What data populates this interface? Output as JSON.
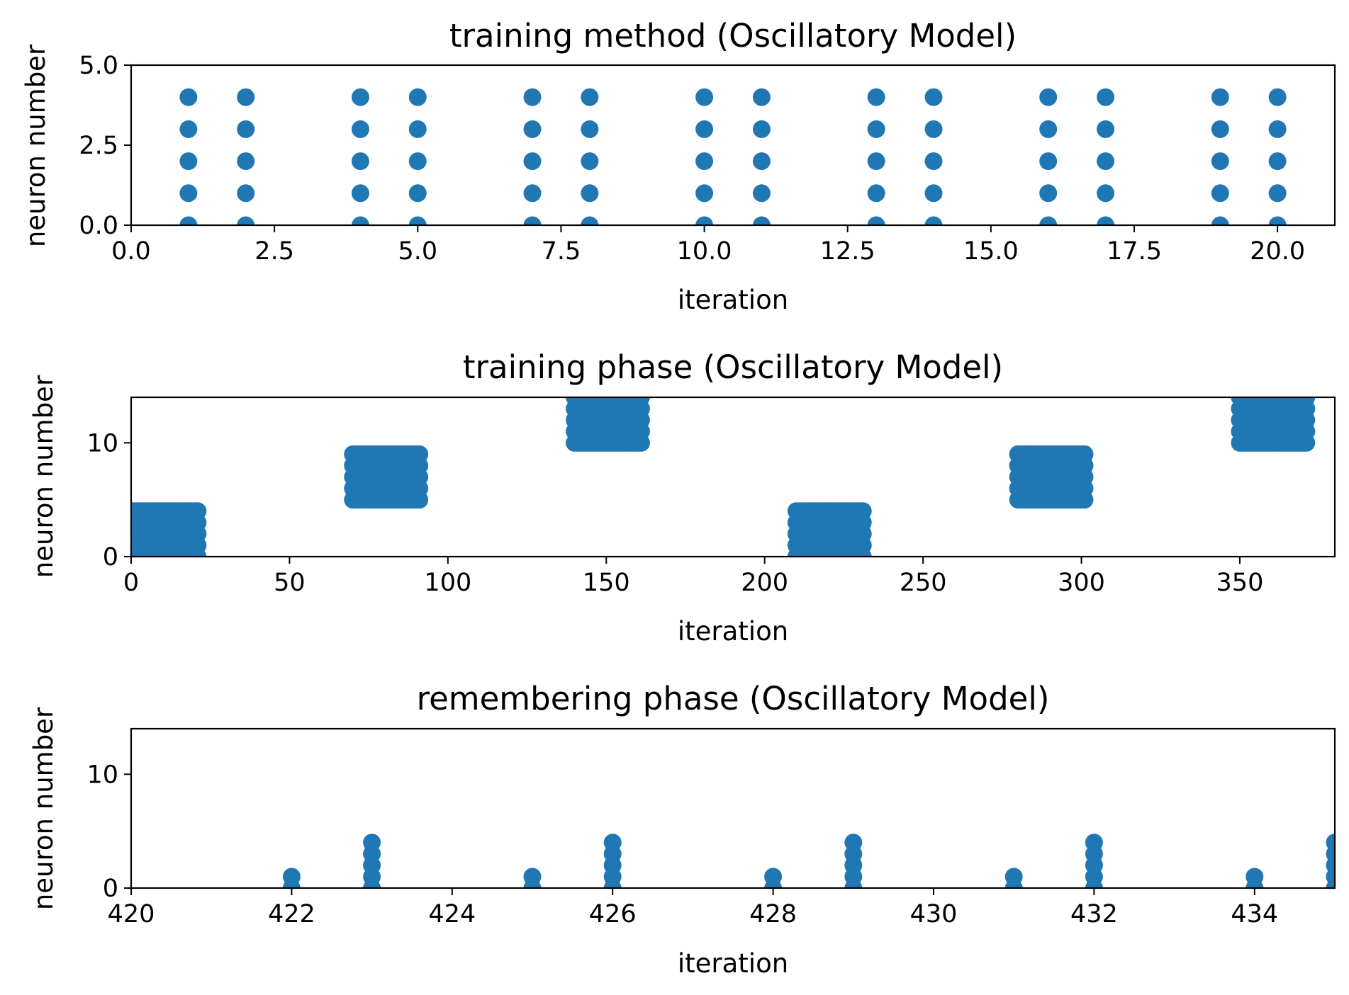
{
  "chart_data": [
    {
      "type": "scatter",
      "title": "training method (Oscillatory Model)",
      "xlabel": "iteration",
      "ylabel": "neuron number",
      "xlim": [
        0,
        21
      ],
      "ylim": [
        0,
        5
      ],
      "xticks": [
        0,
        2.5,
        5,
        7.5,
        10,
        12.5,
        15,
        17.5,
        20
      ],
      "xtick_labels": [
        "0.0",
        "2.5",
        "5.0",
        "7.5",
        "10.0",
        "12.5",
        "15.0",
        "17.5",
        "20.0"
      ],
      "yticks": [
        0,
        2.5,
        5
      ],
      "ytick_labels": [
        "0.0",
        "2.5",
        "5.0"
      ],
      "grid": false,
      "color": "#1f77b4",
      "points": [
        [
          1,
          0
        ],
        [
          1,
          1
        ],
        [
          1,
          2
        ],
        [
          1,
          3
        ],
        [
          1,
          4
        ],
        [
          2,
          0
        ],
        [
          2,
          1
        ],
        [
          2,
          2
        ],
        [
          2,
          3
        ],
        [
          2,
          4
        ],
        [
          4,
          0
        ],
        [
          4,
          1
        ],
        [
          4,
          2
        ],
        [
          4,
          3
        ],
        [
          4,
          4
        ],
        [
          5,
          0
        ],
        [
          5,
          1
        ],
        [
          5,
          2
        ],
        [
          5,
          3
        ],
        [
          5,
          4
        ],
        [
          7,
          0
        ],
        [
          7,
          1
        ],
        [
          7,
          2
        ],
        [
          7,
          3
        ],
        [
          7,
          4
        ],
        [
          8,
          0
        ],
        [
          8,
          1
        ],
        [
          8,
          2
        ],
        [
          8,
          3
        ],
        [
          8,
          4
        ],
        [
          10,
          0
        ],
        [
          10,
          1
        ],
        [
          10,
          2
        ],
        [
          10,
          3
        ],
        [
          10,
          4
        ],
        [
          11,
          0
        ],
        [
          11,
          1
        ],
        [
          11,
          2
        ],
        [
          11,
          3
        ],
        [
          11,
          4
        ],
        [
          13,
          0
        ],
        [
          13,
          1
        ],
        [
          13,
          2
        ],
        [
          13,
          3
        ],
        [
          13,
          4
        ],
        [
          14,
          0
        ],
        [
          14,
          1
        ],
        [
          14,
          2
        ],
        [
          14,
          3
        ],
        [
          14,
          4
        ],
        [
          16,
          0
        ],
        [
          16,
          1
        ],
        [
          16,
          2
        ],
        [
          16,
          3
        ],
        [
          16,
          4
        ],
        [
          17,
          0
        ],
        [
          17,
          1
        ],
        [
          17,
          2
        ],
        [
          17,
          3
        ],
        [
          17,
          4
        ],
        [
          19,
          0
        ],
        [
          19,
          1
        ],
        [
          19,
          2
        ],
        [
          19,
          3
        ],
        [
          19,
          4
        ],
        [
          20,
          0
        ],
        [
          20,
          1
        ],
        [
          20,
          2
        ],
        [
          20,
          3
        ],
        [
          20,
          4
        ]
      ]
    },
    {
      "type": "scatter",
      "title": "training phase (Oscillatory Model)",
      "xlabel": "iteration",
      "ylabel": "neuron number",
      "xlim": [
        0,
        380
      ],
      "ylim": [
        0,
        14
      ],
      "xticks": [
        0,
        50,
        100,
        150,
        200,
        250,
        300,
        350
      ],
      "xtick_labels": [
        "0",
        "50",
        "100",
        "150",
        "200",
        "250",
        "300",
        "350"
      ],
      "yticks": [
        0,
        10
      ],
      "ytick_labels": [
        "0",
        "10"
      ],
      "grid": false,
      "color": "#1f77b4",
      "clusters": [
        {
          "x_start": 0,
          "x_end": 21,
          "neurons": [
            0,
            1,
            2,
            3,
            4
          ]
        },
        {
          "x_start": 70,
          "x_end": 91,
          "neurons": [
            5,
            6,
            7,
            8,
            9
          ]
        },
        {
          "x_start": 140,
          "x_end": 161,
          "neurons": [
            10,
            11,
            12,
            13,
            14
          ]
        },
        {
          "x_start": 210,
          "x_end": 231,
          "neurons": [
            0,
            1,
            2,
            3,
            4
          ]
        },
        {
          "x_start": 280,
          "x_end": 301,
          "neurons": [
            5,
            6,
            7,
            8,
            9
          ]
        },
        {
          "x_start": 350,
          "x_end": 371,
          "neurons": [
            10,
            11,
            12,
            13,
            14
          ]
        }
      ]
    },
    {
      "type": "scatter",
      "title": "remembering phase (Oscillatory Model)",
      "xlabel": "iteration",
      "ylabel": "neuron number",
      "xlim": [
        420,
        435
      ],
      "ylim": [
        0,
        14
      ],
      "xticks": [
        420,
        422,
        424,
        426,
        428,
        430,
        432,
        434
      ],
      "xtick_labels": [
        "420",
        "422",
        "424",
        "426",
        "428",
        "430",
        "432",
        "434"
      ],
      "yticks": [
        0,
        10
      ],
      "ytick_labels": [
        "0",
        "10"
      ],
      "grid": false,
      "color": "#1f77b4",
      "points": [
        [
          422,
          0
        ],
        [
          422,
          1
        ],
        [
          423,
          0
        ],
        [
          423,
          1
        ],
        [
          423,
          2
        ],
        [
          423,
          3
        ],
        [
          423,
          4
        ],
        [
          425,
          0
        ],
        [
          425,
          1
        ],
        [
          426,
          0
        ],
        [
          426,
          1
        ],
        [
          426,
          2
        ],
        [
          426,
          3
        ],
        [
          426,
          4
        ],
        [
          428,
          0
        ],
        [
          428,
          1
        ],
        [
          429,
          0
        ],
        [
          429,
          1
        ],
        [
          429,
          2
        ],
        [
          429,
          3
        ],
        [
          429,
          4
        ],
        [
          431,
          0
        ],
        [
          431,
          1
        ],
        [
          432,
          0
        ],
        [
          432,
          1
        ],
        [
          432,
          2
        ],
        [
          432,
          3
        ],
        [
          432,
          4
        ],
        [
          434,
          0
        ],
        [
          434,
          1
        ],
        [
          435,
          0
        ],
        [
          435,
          1
        ],
        [
          435,
          2
        ],
        [
          435,
          3
        ],
        [
          435,
          4
        ]
      ]
    }
  ]
}
